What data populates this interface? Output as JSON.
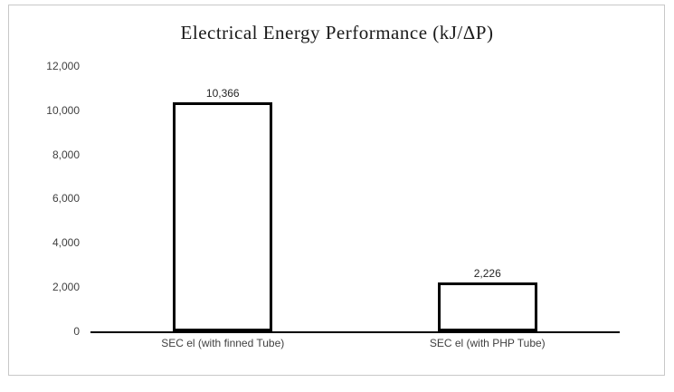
{
  "chart_data": {
    "type": "bar",
    "title": "Electrical Energy Performance (kJ/ΔP)",
    "categories": [
      "SEC el (with finned Tube)",
      "SEC el (with PHP Tube)"
    ],
    "values": [
      10366,
      2226
    ],
    "value_labels": [
      "10,366",
      "2,226"
    ],
    "xlabel": "",
    "ylabel": "",
    "ylim": [
      0,
      12000
    ],
    "yticks": [
      0,
      2000,
      4000,
      6000,
      8000,
      10000,
      12000
    ],
    "ytick_labels": [
      "0",
      "2,000",
      "4,000",
      "6,000",
      "8,000",
      "10,000",
      "12,000"
    ],
    "grid": false,
    "legend": false,
    "colors": {
      "bar_fill": "#ffffff",
      "bar_border": "#000000",
      "axis": "#000000",
      "frame_border": "#c8c8c8",
      "text": "#262626"
    }
  }
}
